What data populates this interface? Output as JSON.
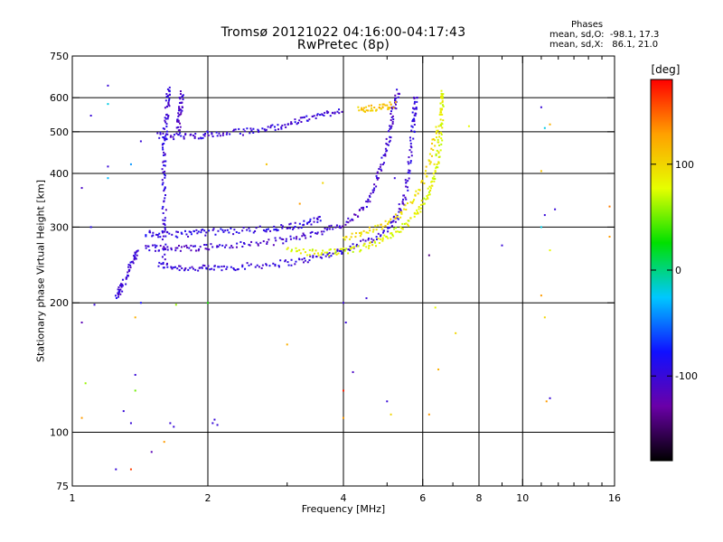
{
  "chart_data": {
    "type": "scatter",
    "title": "Tromsø 20121022 04:16:00-04:17:43",
    "subtitle": "RwPretec (8p)",
    "stats": {
      "header": "Phases",
      "o_mode": "mean, sd,O:  -98.1, 17.3",
      "x_mode": "mean, sd,X:   86.1, 21.0"
    },
    "xlabel": "Frequency [MHz]",
    "ylabel": "Stationary phase Virtual Height [km]",
    "x_scale": "log",
    "y_scale": "log",
    "xlim": [
      1,
      16
    ],
    "ylim": [
      75,
      750
    ],
    "x_ticks": [
      1,
      2,
      4,
      6,
      8,
      10,
      16
    ],
    "x_tick_labels": [
      "1",
      "2",
      "4",
      "6",
      "8",
      "10",
      "16"
    ],
    "x_grid_lines": [
      1,
      2,
      4,
      6,
      8,
      10,
      16
    ],
    "x_minor_ticks": [
      3,
      5,
      7,
      9,
      11,
      12,
      13,
      14,
      15
    ],
    "y_ticks": [
      75,
      100,
      200,
      300,
      400,
      500,
      600,
      750
    ],
    "y_tick_labels": [
      "75",
      "100",
      "200",
      "300",
      "400",
      "500",
      "600",
      "750"
    ],
    "y_grid_lines": [
      100,
      200,
      300,
      400,
      500,
      600
    ],
    "grid": true,
    "colorbar": {
      "unit": "[deg]",
      "range": [
        -180,
        180
      ],
      "ticks": [
        100,
        0,
        -100
      ],
      "tick_labels": [
        "100",
        "0",
        "-100"
      ],
      "colors": [
        "#000000",
        "#6a00a8",
        "#1010ff",
        "#00c8ff",
        "#00e000",
        "#e6ff00",
        "#ffa000",
        "#ff0000"
      ]
    },
    "traces": [
      {
        "name_hidden": "o_F1_lower",
        "phase": -100,
        "points": [
          [
            1.55,
            245
          ],
          [
            1.7,
            242
          ],
          [
            1.9,
            240
          ],
          [
            2.1,
            241
          ],
          [
            2.4,
            243
          ],
          [
            2.8,
            246
          ],
          [
            3.2,
            250
          ],
          [
            3.6,
            257
          ],
          [
            4.0,
            265
          ],
          [
            4.5,
            278
          ],
          [
            5.0,
            295
          ],
          [
            5.3,
            320
          ],
          [
            5.5,
            360
          ],
          [
            5.6,
            420
          ],
          [
            5.7,
            500
          ],
          [
            5.75,
            560
          ],
          [
            5.8,
            610
          ]
        ]
      },
      {
        "name_hidden": "o_F1_upper",
        "phase": -105,
        "points": [
          [
            1.45,
            270
          ],
          [
            1.6,
            268
          ],
          [
            1.8,
            268
          ],
          [
            2.0,
            270
          ],
          [
            2.3,
            272
          ],
          [
            2.7,
            276
          ],
          [
            3.1,
            282
          ],
          [
            3.5,
            292
          ],
          [
            3.9,
            300
          ],
          [
            4.3,
            320
          ],
          [
            4.6,
            350
          ],
          [
            4.8,
            400
          ],
          [
            5.0,
            460
          ],
          [
            5.1,
            520
          ],
          [
            5.2,
            580
          ],
          [
            5.3,
            620
          ]
        ]
      },
      {
        "name_hidden": "o_F1_mid",
        "phase": -95,
        "points": [
          [
            1.45,
            290
          ],
          [
            1.6,
            288
          ],
          [
            1.8,
            290
          ],
          [
            2.0,
            292
          ],
          [
            2.3,
            294
          ],
          [
            2.7,
            297
          ],
          [
            3.0,
            300
          ],
          [
            3.3,
            306
          ],
          [
            3.6,
            315
          ]
        ]
      },
      {
        "name_hidden": "o_F2_trace",
        "phase": -100,
        "points": [
          [
            1.55,
            490
          ],
          [
            1.7,
            488
          ],
          [
            1.9,
            490
          ],
          [
            2.1,
            494
          ],
          [
            2.4,
            500
          ],
          [
            2.7,
            508
          ],
          [
            3.0,
            520
          ],
          [
            3.3,
            535
          ],
          [
            3.6,
            548
          ],
          [
            4.0,
            565
          ]
        ]
      },
      {
        "name_hidden": "o_vertical_1p6",
        "phase": -100,
        "points": [
          [
            1.6,
            250
          ],
          [
            1.6,
            300
          ],
          [
            1.6,
            360
          ],
          [
            1.6,
            420
          ],
          [
            1.6,
            480
          ],
          [
            1.62,
            540
          ],
          [
            1.63,
            600
          ],
          [
            1.64,
            630
          ]
        ]
      },
      {
        "name_hidden": "o_vertical_1p75",
        "phase": -110,
        "points": [
          [
            1.72,
            500
          ],
          [
            1.73,
            540
          ],
          [
            1.74,
            580
          ],
          [
            1.75,
            620
          ]
        ]
      },
      {
        "name_hidden": "o_low_start",
        "phase": -100,
        "points": [
          [
            1.25,
            205
          ],
          [
            1.28,
            215
          ],
          [
            1.32,
            230
          ],
          [
            1.36,
            250
          ],
          [
            1.4,
            265
          ]
        ]
      },
      {
        "name_hidden": "x_trace",
        "phase": 80,
        "points": [
          [
            3.0,
            265
          ],
          [
            3.4,
            262
          ],
          [
            3.8,
            262
          ],
          [
            4.2,
            265
          ],
          [
            4.6,
            272
          ],
          [
            5.0,
            285
          ],
          [
            5.4,
            300
          ],
          [
            5.8,
            320
          ],
          [
            6.1,
            350
          ],
          [
            6.3,
            380
          ],
          [
            6.45,
            420
          ],
          [
            6.55,
            470
          ],
          [
            6.6,
            530
          ],
          [
            6.62,
            580
          ],
          [
            6.65,
            630
          ]
        ]
      },
      {
        "name_hidden": "x_trace_2",
        "phase": 95,
        "points": [
          [
            4.0,
            280
          ],
          [
            4.5,
            292
          ],
          [
            5.0,
            305
          ],
          [
            5.5,
            330
          ],
          [
            6.0,
            380
          ],
          [
            6.3,
            450
          ],
          [
            6.5,
            530
          ]
        ]
      },
      {
        "name_hidden": "x_f2_upper",
        "phase": 110,
        "points": [
          [
            4.3,
            560
          ],
          [
            4.6,
            565
          ],
          [
            4.9,
            570
          ],
          [
            5.2,
            580
          ]
        ]
      }
    ],
    "scatter_points": [
      [
        1.05,
        370,
        -110
      ],
      [
        1.05,
        180,
        -120
      ],
      [
        1.07,
        130,
        60
      ],
      [
        1.05,
        108,
        130
      ],
      [
        1.1,
        545,
        -100
      ],
      [
        1.1,
        300,
        -90
      ],
      [
        1.12,
        198,
        -100
      ],
      [
        1.2,
        640,
        -100
      ],
      [
        1.2,
        580,
        -20
      ],
      [
        1.2,
        390,
        -30
      ],
      [
        1.2,
        415,
        -100
      ],
      [
        1.25,
        82,
        -100
      ],
      [
        1.35,
        420,
        -40
      ],
      [
        1.35,
        82,
        160
      ],
      [
        1.38,
        185,
        120
      ],
      [
        1.38,
        125,
        50
      ],
      [
        1.38,
        136,
        -100
      ],
      [
        1.3,
        112,
        -100
      ],
      [
        1.42,
        475,
        -100
      ],
      [
        1.42,
        200,
        -80
      ],
      [
        1.35,
        105,
        -100
      ],
      [
        1.5,
        90,
        -120
      ],
      [
        1.6,
        95,
        130
      ],
      [
        1.65,
        105,
        -100
      ],
      [
        1.68,
        103,
        -100
      ],
      [
        1.7,
        198,
        60
      ],
      [
        2.05,
        105,
        -100
      ],
      [
        2.07,
        107,
        -100
      ],
      [
        2.1,
        104,
        -100
      ],
      [
        2.0,
        200,
        30
      ],
      [
        2.7,
        420,
        110
      ],
      [
        3.0,
        160,
        120
      ],
      [
        3.2,
        340,
        130
      ],
      [
        3.6,
        380,
        100
      ],
      [
        4.0,
        200,
        -100
      ],
      [
        4.0,
        125,
        170
      ],
      [
        4.0,
        108,
        130
      ],
      [
        4.05,
        180,
        -100
      ],
      [
        4.2,
        138,
        -110
      ],
      [
        4.5,
        205,
        -100
      ],
      [
        5.0,
        118,
        -100
      ],
      [
        5.1,
        110,
        100
      ],
      [
        5.2,
        390,
        -100
      ],
      [
        6.2,
        258,
        -140
      ],
      [
        6.4,
        195,
        80
      ],
      [
        6.5,
        140,
        120
      ],
      [
        6.2,
        110,
        130
      ],
      [
        7.1,
        170,
        100
      ],
      [
        7.6,
        515,
        80
      ],
      [
        9.0,
        272,
        -100
      ],
      [
        11.0,
        570,
        -100
      ],
      [
        11.2,
        510,
        -20
      ],
      [
        11.5,
        520,
        120
      ],
      [
        11.0,
        405,
        110
      ],
      [
        11.2,
        320,
        -100
      ],
      [
        11.0,
        208,
        130
      ],
      [
        11.2,
        185,
        100
      ],
      [
        11.5,
        120,
        -100
      ],
      [
        11.3,
        118,
        130
      ],
      [
        11.0,
        300,
        -20
      ],
      [
        11.5,
        265,
        80
      ],
      [
        11.8,
        330,
        -100
      ],
      [
        15.6,
        335,
        140
      ],
      [
        15.6,
        285,
        130
      ]
    ]
  }
}
